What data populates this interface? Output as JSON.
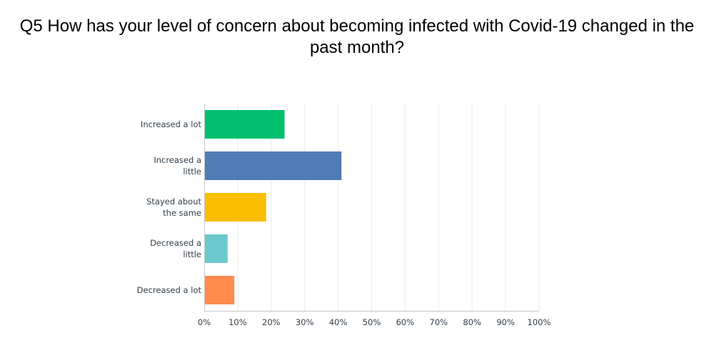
{
  "chart_data": {
    "type": "bar",
    "orientation": "horizontal",
    "title": "Q5 How has your level of concern about becoming infected with Covid-19 changed in the past month?",
    "categories": [
      [
        "Increased a lot"
      ],
      [
        "Increased a",
        "little"
      ],
      [
        "Stayed about",
        "the same"
      ],
      [
        "Decreased a",
        "little"
      ],
      [
        "Decreased a lot"
      ]
    ],
    "values": [
      24,
      41,
      18.5,
      7,
      9
    ],
    "colors": [
      "#00bf6f",
      "#507cb6",
      "#f9be00",
      "#6bc8cd",
      "#ff8b4f"
    ],
    "xlim": [
      0,
      100
    ],
    "x_ticks": [
      "0%",
      "10%",
      "20%",
      "30%",
      "40%",
      "50%",
      "60%",
      "70%",
      "80%",
      "90%",
      "100%"
    ],
    "grid": true
  }
}
